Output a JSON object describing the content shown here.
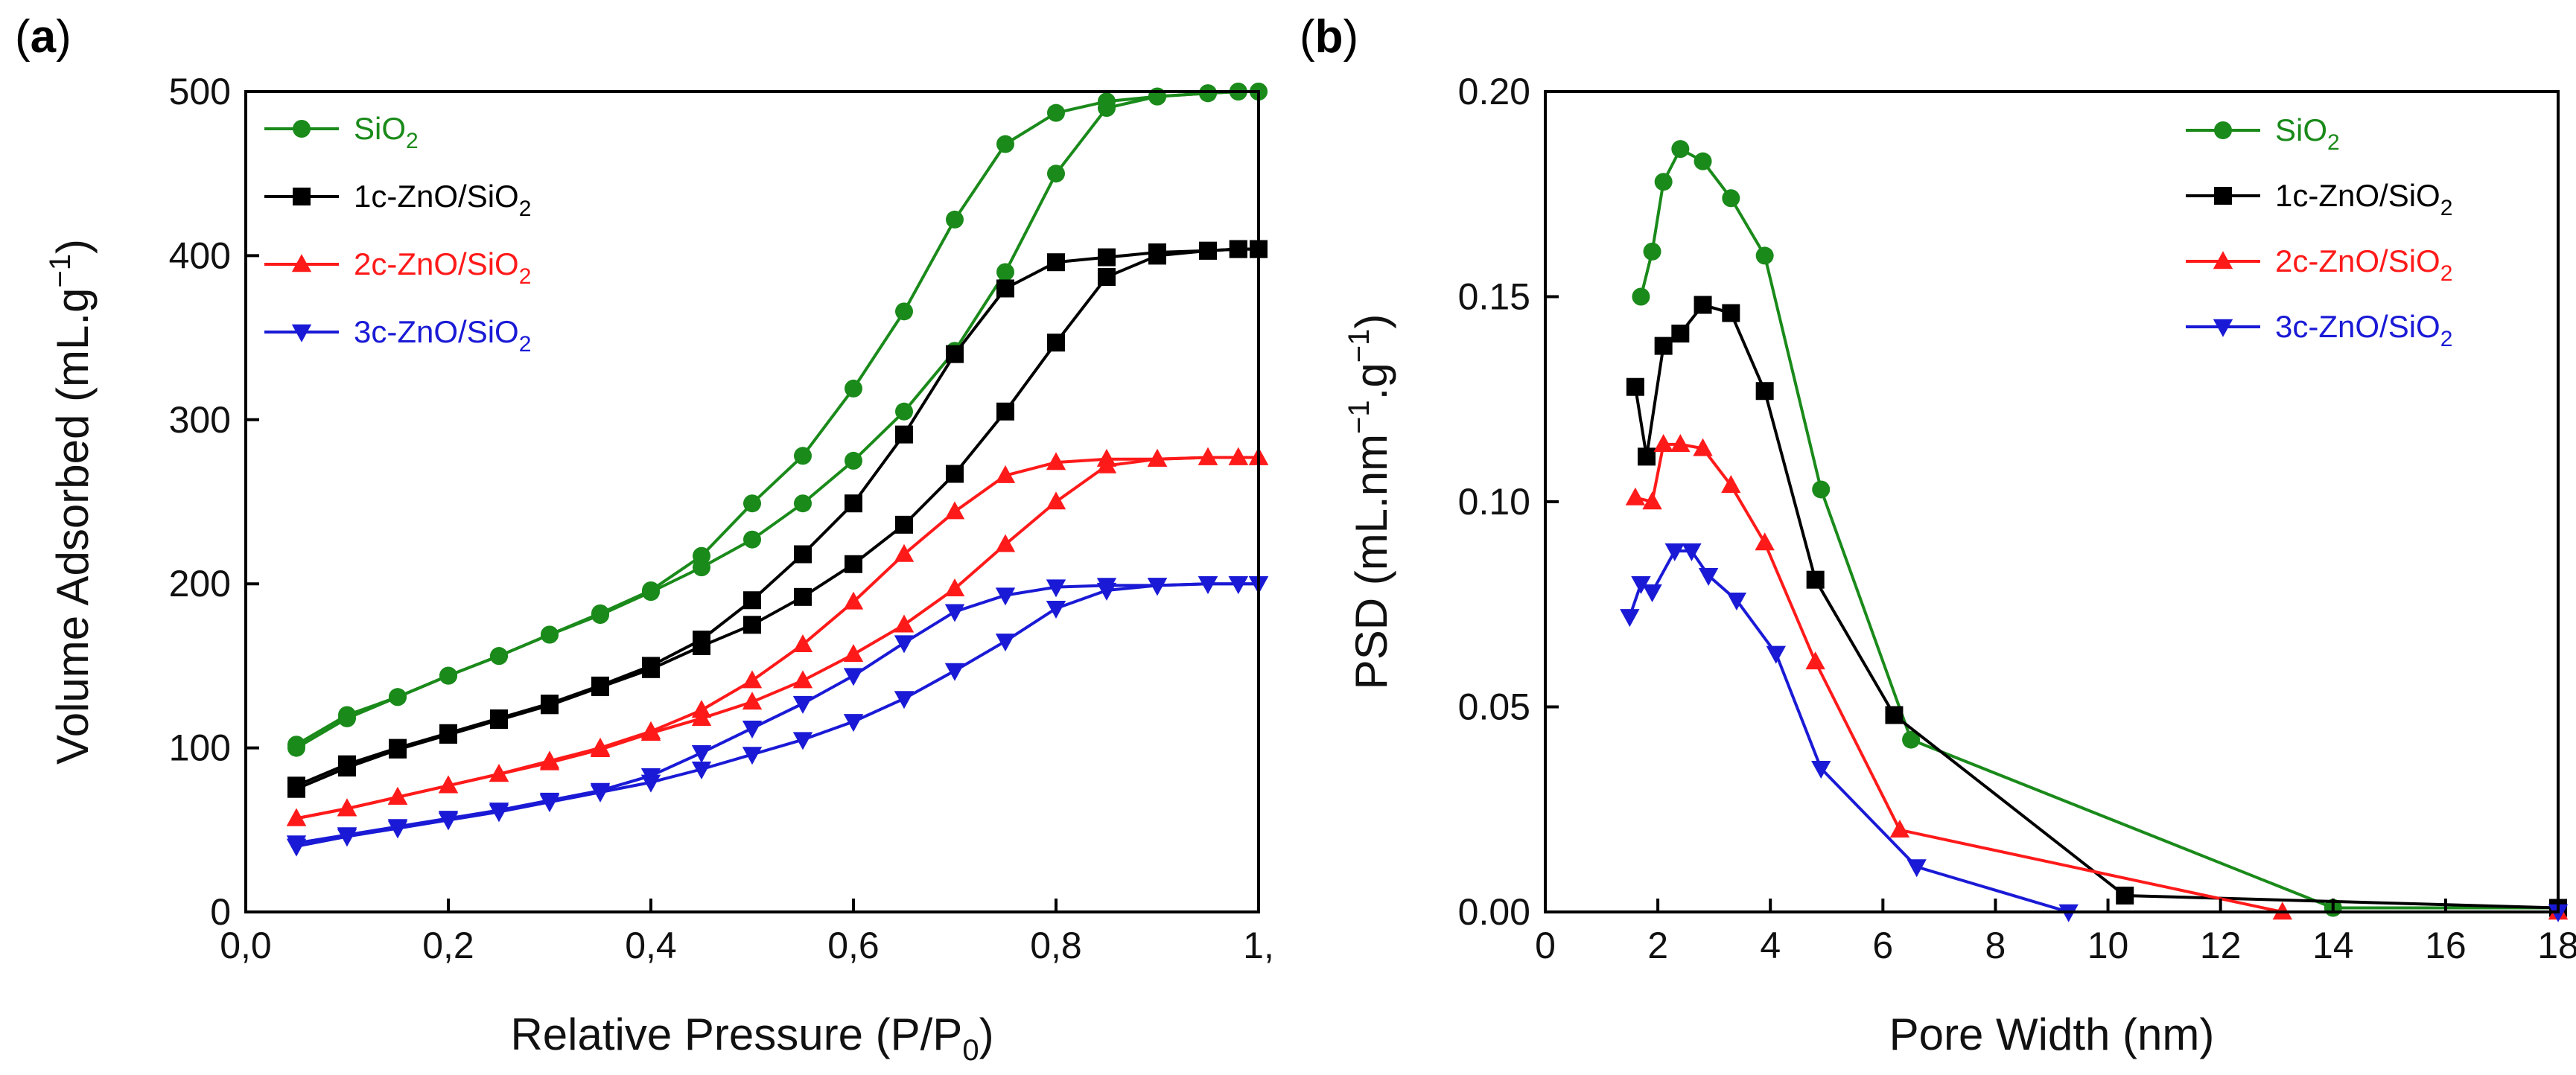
{
  "chart_data": [
    {
      "panel_label": "(a)",
      "type": "line",
      "xlabel": "Relative Pressure  (P/P",
      "xlabel_sub": "0",
      "xlabel_end": ")",
      "ylabel": "Volume Adsorbed (mL.g",
      "ylabel_sup": "−1",
      "ylabel_end": ")",
      "xlim": [
        0.0,
        1.0
      ],
      "ylim": [
        0,
        500
      ],
      "xticks": [
        0.0,
        0.2,
        0.4,
        0.6,
        0.8,
        1.0
      ],
      "xtick_labels": [
        "0,0",
        "0,2",
        "0,4",
        "0,6",
        "0,8",
        "1,"
      ],
      "yticks": [
        0,
        100,
        200,
        300,
        400,
        500
      ],
      "ytick_labels": [
        "0",
        "100",
        "200",
        "300",
        "400",
        "500"
      ],
      "legend_position": "top-left",
      "series": [
        {
          "name": "SiO2",
          "label_main": "SiO",
          "label_sub": "2",
          "label_tail": "",
          "color": "#1a8a1a",
          "marker": "circle",
          "adsorption": {
            "x": [
              0.05,
              0.1,
              0.15,
              0.2,
              0.25,
              0.3,
              0.35,
              0.4,
              0.45,
              0.5,
              0.55,
              0.6,
              0.65,
              0.7,
              0.75,
              0.8,
              0.85,
              0.9,
              0.95,
              0.98,
              1.0
            ],
            "y": [
              100,
              118,
              131,
              144,
              156,
              169,
              181,
              195,
              210,
              227,
              249,
              275,
              305,
              342,
              390,
              450,
              490,
              497,
              499,
              500,
              500
            ]
          },
          "desorption": {
            "x": [
              1.0,
              0.98,
              0.95,
              0.9,
              0.85,
              0.8,
              0.75,
              0.7,
              0.65,
              0.6,
              0.55,
              0.5,
              0.45,
              0.4,
              0.35,
              0.3,
              0.25,
              0.2,
              0.15,
              0.1,
              0.05
            ],
            "y": [
              500,
              500,
              499,
              497,
              494,
              487,
              468,
              422,
              366,
              319,
              278,
              249,
              217,
              196,
              182,
              169,
              156,
              144,
              131,
              120,
              102
            ]
          }
        },
        {
          "name": "1c-ZnO/SiO2",
          "label_main": "1c-ZnO/SiO",
          "label_sub": "2",
          "label_tail": "",
          "color": "#000000",
          "marker": "square",
          "adsorption": {
            "x": [
              0.05,
              0.1,
              0.15,
              0.2,
              0.25,
              0.3,
              0.35,
              0.4,
              0.45,
              0.5,
              0.55,
              0.6,
              0.65,
              0.7,
              0.75,
              0.8,
              0.85,
              0.9,
              0.95,
              0.98,
              1.0
            ],
            "y": [
              75,
              88,
              99,
              108,
              117,
              126,
              137,
              148,
              162,
              175,
              192,
              212,
              236,
              267,
              305,
              347,
              387,
              400,
              403,
              404,
              404
            ]
          },
          "desorption": {
            "x": [
              1.0,
              0.98,
              0.95,
              0.9,
              0.85,
              0.8,
              0.75,
              0.7,
              0.65,
              0.6,
              0.55,
              0.5,
              0.45,
              0.4,
              0.35,
              0.3,
              0.25,
              0.2,
              0.15,
              0.1,
              0.05
            ],
            "y": [
              404,
              404,
              403,
              402,
              399,
              396,
              380,
              340,
              291,
              249,
              218,
              190,
              166,
              150,
              138,
              127,
              118,
              109,
              100,
              90,
              77
            ]
          }
        },
        {
          "name": "2c-ZnO/SiO2",
          "label_main": "2c-ZnO/SiO",
          "label_sub": "2",
          "label_tail": "",
          "color": "#ff1a1a",
          "marker": "triangle-up",
          "adsorption": {
            "x": [
              0.05,
              0.1,
              0.15,
              0.2,
              0.25,
              0.3,
              0.35,
              0.4,
              0.45,
              0.5,
              0.55,
              0.6,
              0.65,
              0.7,
              0.75,
              0.8,
              0.85,
              0.9,
              0.95,
              0.98,
              1.0
            ],
            "y": [
              57,
              63,
              70,
              77,
              84,
              91,
              99,
              109,
              118,
              128,
              141,
              157,
              175,
              197,
              224,
              250,
              272,
              276,
              277,
              277,
              277
            ]
          },
          "desorption": {
            "x": [
              1.0,
              0.98,
              0.95,
              0.9,
              0.85,
              0.8,
              0.75,
              0.7,
              0.65,
              0.6,
              0.55,
              0.5,
              0.45,
              0.4,
              0.35,
              0.3,
              0.25,
              0.2,
              0.15,
              0.1,
              0.05
            ],
            "y": [
              277,
              277,
              277,
              276,
              276,
              274,
              266,
              244,
              218,
              189,
              163,
              141,
              123,
              110,
              100,
              92,
              84,
              77,
              70,
              63,
              57
            ]
          }
        },
        {
          "name": "3c-ZnO/SiO2",
          "label_main": "3c-ZnO/SiO",
          "label_sub": "2",
          "label_tail": "",
          "color": "#1a1ad6",
          "marker": "triangle-down",
          "adsorption": {
            "x": [
              0.05,
              0.1,
              0.15,
              0.2,
              0.25,
              0.3,
              0.35,
              0.4,
              0.45,
              0.5,
              0.55,
              0.6,
              0.65,
              0.7,
              0.75,
              0.8,
              0.85,
              0.9,
              0.95,
              0.98,
              1.0
            ],
            "y": [
              40,
              46,
              51,
              56,
              61,
              67,
              73,
              79,
              87,
              96,
              105,
              116,
              130,
              147,
              165,
              185,
              196,
              199,
              200,
              200,
              200
            ]
          },
          "desorption": {
            "x": [
              1.0,
              0.98,
              0.95,
              0.9,
              0.85,
              0.8,
              0.75,
              0.7,
              0.65,
              0.6,
              0.55,
              0.5,
              0.45,
              0.4,
              0.35,
              0.3,
              0.25,
              0.2,
              0.15,
              0.1,
              0.05
            ],
            "y": [
              200,
              200,
              200,
              199,
              199,
              198,
              193,
              183,
              164,
              144,
              127,
              112,
              97,
              83,
              74,
              68,
              62,
              57,
              52,
              47,
              42
            ]
          }
        }
      ]
    },
    {
      "panel_label": "(b)",
      "type": "line",
      "xlabel": "Pore Width (nm)",
      "ylabel": "PSD (mL.nm",
      "ylabel_sup1": "−1",
      "ylabel_mid": ".g",
      "ylabel_sup2": "−1",
      "ylabel_end": ")",
      "xlim": [
        0,
        18
      ],
      "ylim": [
        0.0,
        0.2
      ],
      "xticks": [
        0,
        2,
        4,
        6,
        8,
        10,
        12,
        14,
        16,
        18
      ],
      "xtick_labels": [
        "0",
        "2",
        "4",
        "6",
        "8",
        "10",
        "12",
        "14",
        "16",
        "18"
      ],
      "yticks": [
        0.0,
        0.05,
        0.1,
        0.15,
        0.2
      ],
      "ytick_labels": [
        "0.00",
        "0.05",
        "0.10",
        "0.15",
        "0.20"
      ],
      "legend_position": "top-right",
      "series": [
        {
          "name": "SiO2",
          "label_main": "SiO",
          "label_sub": "2",
          "color": "#1a8a1a",
          "marker": "circle",
          "x": [
            1.7,
            1.9,
            2.1,
            2.4,
            2.8,
            3.3,
            3.9,
            4.9,
            6.5,
            14.0,
            18.0
          ],
          "y": [
            0.15,
            0.161,
            0.178,
            0.186,
            0.183,
            0.174,
            0.16,
            0.103,
            0.042,
            0.001,
            0.001
          ]
        },
        {
          "name": "1c-ZnO/SiO2",
          "label_main": "1c-ZnO/SiO",
          "label_sub": "2",
          "color": "#000000",
          "marker": "square",
          "x": [
            1.6,
            1.8,
            2.1,
            2.4,
            2.8,
            3.3,
            3.9,
            4.8,
            6.2,
            10.3,
            18.0
          ],
          "y": [
            0.128,
            0.111,
            0.138,
            0.141,
            0.148,
            0.146,
            0.127,
            0.081,
            0.048,
            0.004,
            0.001
          ]
        },
        {
          "name": "2c-ZnO/SiO2",
          "label_main": "2c-ZnO/SiO",
          "label_sub": "2",
          "color": "#ff1a1a",
          "marker": "triangle-up",
          "x": [
            1.6,
            1.9,
            2.1,
            2.4,
            2.8,
            3.3,
            3.9,
            4.8,
            6.3,
            13.1,
            18.0
          ],
          "y": [
            0.101,
            0.1,
            0.114,
            0.114,
            0.113,
            0.104,
            0.09,
            0.061,
            0.02,
            0.0,
            0.0
          ]
        },
        {
          "name": "3c-ZnO/SiO2",
          "label_main": "3c-ZnO/SiO",
          "label_sub": "2",
          "color": "#1a1ad6",
          "marker": "triangle-down",
          "x": [
            1.5,
            1.7,
            1.9,
            2.3,
            2.6,
            2.9,
            3.4,
            4.1,
            4.9,
            6.6,
            9.3,
            18.0
          ],
          "y": [
            0.072,
            0.08,
            0.078,
            0.088,
            0.088,
            0.082,
            0.076,
            0.063,
            0.035,
            0.011,
            0.0,
            0.0
          ]
        }
      ]
    }
  ]
}
